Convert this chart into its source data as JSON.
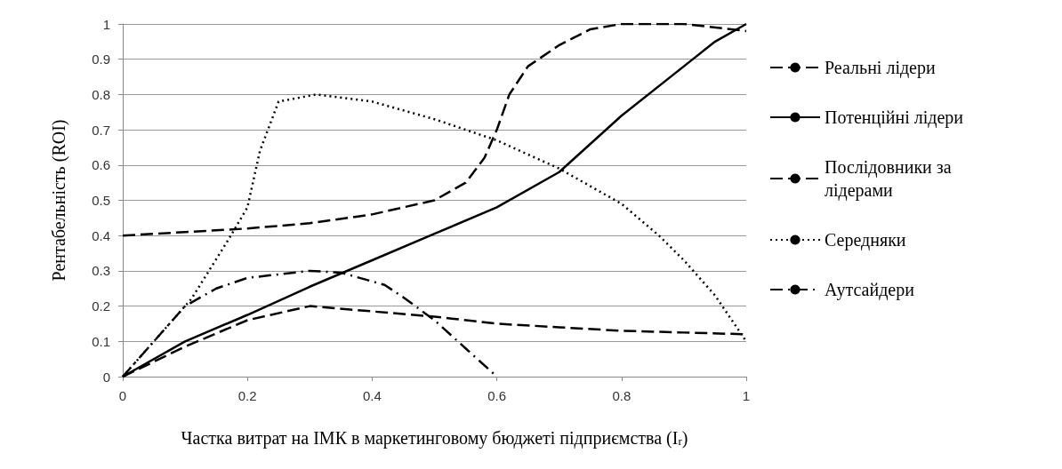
{
  "chart_data": {
    "type": "line",
    "xlabel": "Частка витрат на ІМК в маркетинговому бюджеті підприємства (I$_{r}$)",
    "ylabel": "Рентабельність (ROI)",
    "xlim": [
      0,
      1
    ],
    "xticks": [
      0,
      0.2,
      0.4,
      0.6,
      0.8,
      1
    ],
    "ylim": [
      0,
      1
    ],
    "yticks": [
      0,
      0.1,
      0.2,
      0.3,
      0.4,
      0.5,
      0.6,
      0.7,
      0.8,
      0.9,
      1
    ],
    "grid": "y",
    "legend": "right",
    "marker": "none",
    "series": [
      {
        "name": "Реальні лідери",
        "color": "#000000",
        "line_style": "dashed",
        "x": [
          0,
          0.1,
          0.2,
          0.3,
          0.4,
          0.5,
          0.55,
          0.58,
          0.6,
          0.62,
          0.65,
          0.7,
          0.75,
          0.8,
          0.9,
          1
        ],
        "values": [
          0.4,
          0.41,
          0.42,
          0.435,
          0.46,
          0.5,
          0.55,
          0.62,
          0.7,
          0.8,
          0.88,
          0.94,
          0.985,
          1,
          1,
          0.98
        ]
      },
      {
        "name": "Потенційні лідери",
        "color": "#000000",
        "line_style": "solid",
        "x": [
          0,
          0.1,
          0.2,
          0.3,
          0.4,
          0.5,
          0.6,
          0.7,
          0.8,
          0.9,
          0.95,
          1
        ],
        "values": [
          0,
          0.1,
          0.175,
          0.255,
          0.33,
          0.405,
          0.48,
          0.58,
          0.74,
          0.88,
          0.95,
          1
        ]
      },
      {
        "name": "Послідовники за\nлідерами",
        "color": "#000000",
        "line_style": "dashed",
        "x": [
          0,
          0.1,
          0.2,
          0.3,
          0.4,
          0.5,
          0.6,
          0.7,
          0.8,
          0.9,
          1
        ],
        "values": [
          0,
          0.085,
          0.16,
          0.2,
          0.185,
          0.17,
          0.15,
          0.14,
          0.13,
          0.125,
          0.12
        ]
      },
      {
        "name": "Середняки",
        "color": "#000000",
        "line_style": "dotted",
        "x": [
          0,
          0.05,
          0.11,
          0.17,
          0.2,
          0.22,
          0.25,
          0.31,
          0.4,
          0.5,
          0.6,
          0.7,
          0.8,
          0.86,
          0.9,
          0.95,
          1
        ],
        "values": [
          0,
          0.1,
          0.22,
          0.39,
          0.48,
          0.64,
          0.78,
          0.8,
          0.78,
          0.73,
          0.67,
          0.59,
          0.49,
          0.4,
          0.33,
          0.23,
          0.1
        ]
      },
      {
        "name": "Аутсайдери",
        "color": "#000000",
        "line_style": "dashdot",
        "x": [
          0,
          0.05,
          0.1,
          0.15,
          0.2,
          0.3,
          0.35,
          0.42,
          0.45,
          0.5,
          0.55,
          0.6
        ],
        "values": [
          0,
          0.1,
          0.2,
          0.25,
          0.28,
          0.3,
          0.295,
          0.26,
          0.225,
          0.16,
          0.08,
          0
        ]
      }
    ]
  }
}
